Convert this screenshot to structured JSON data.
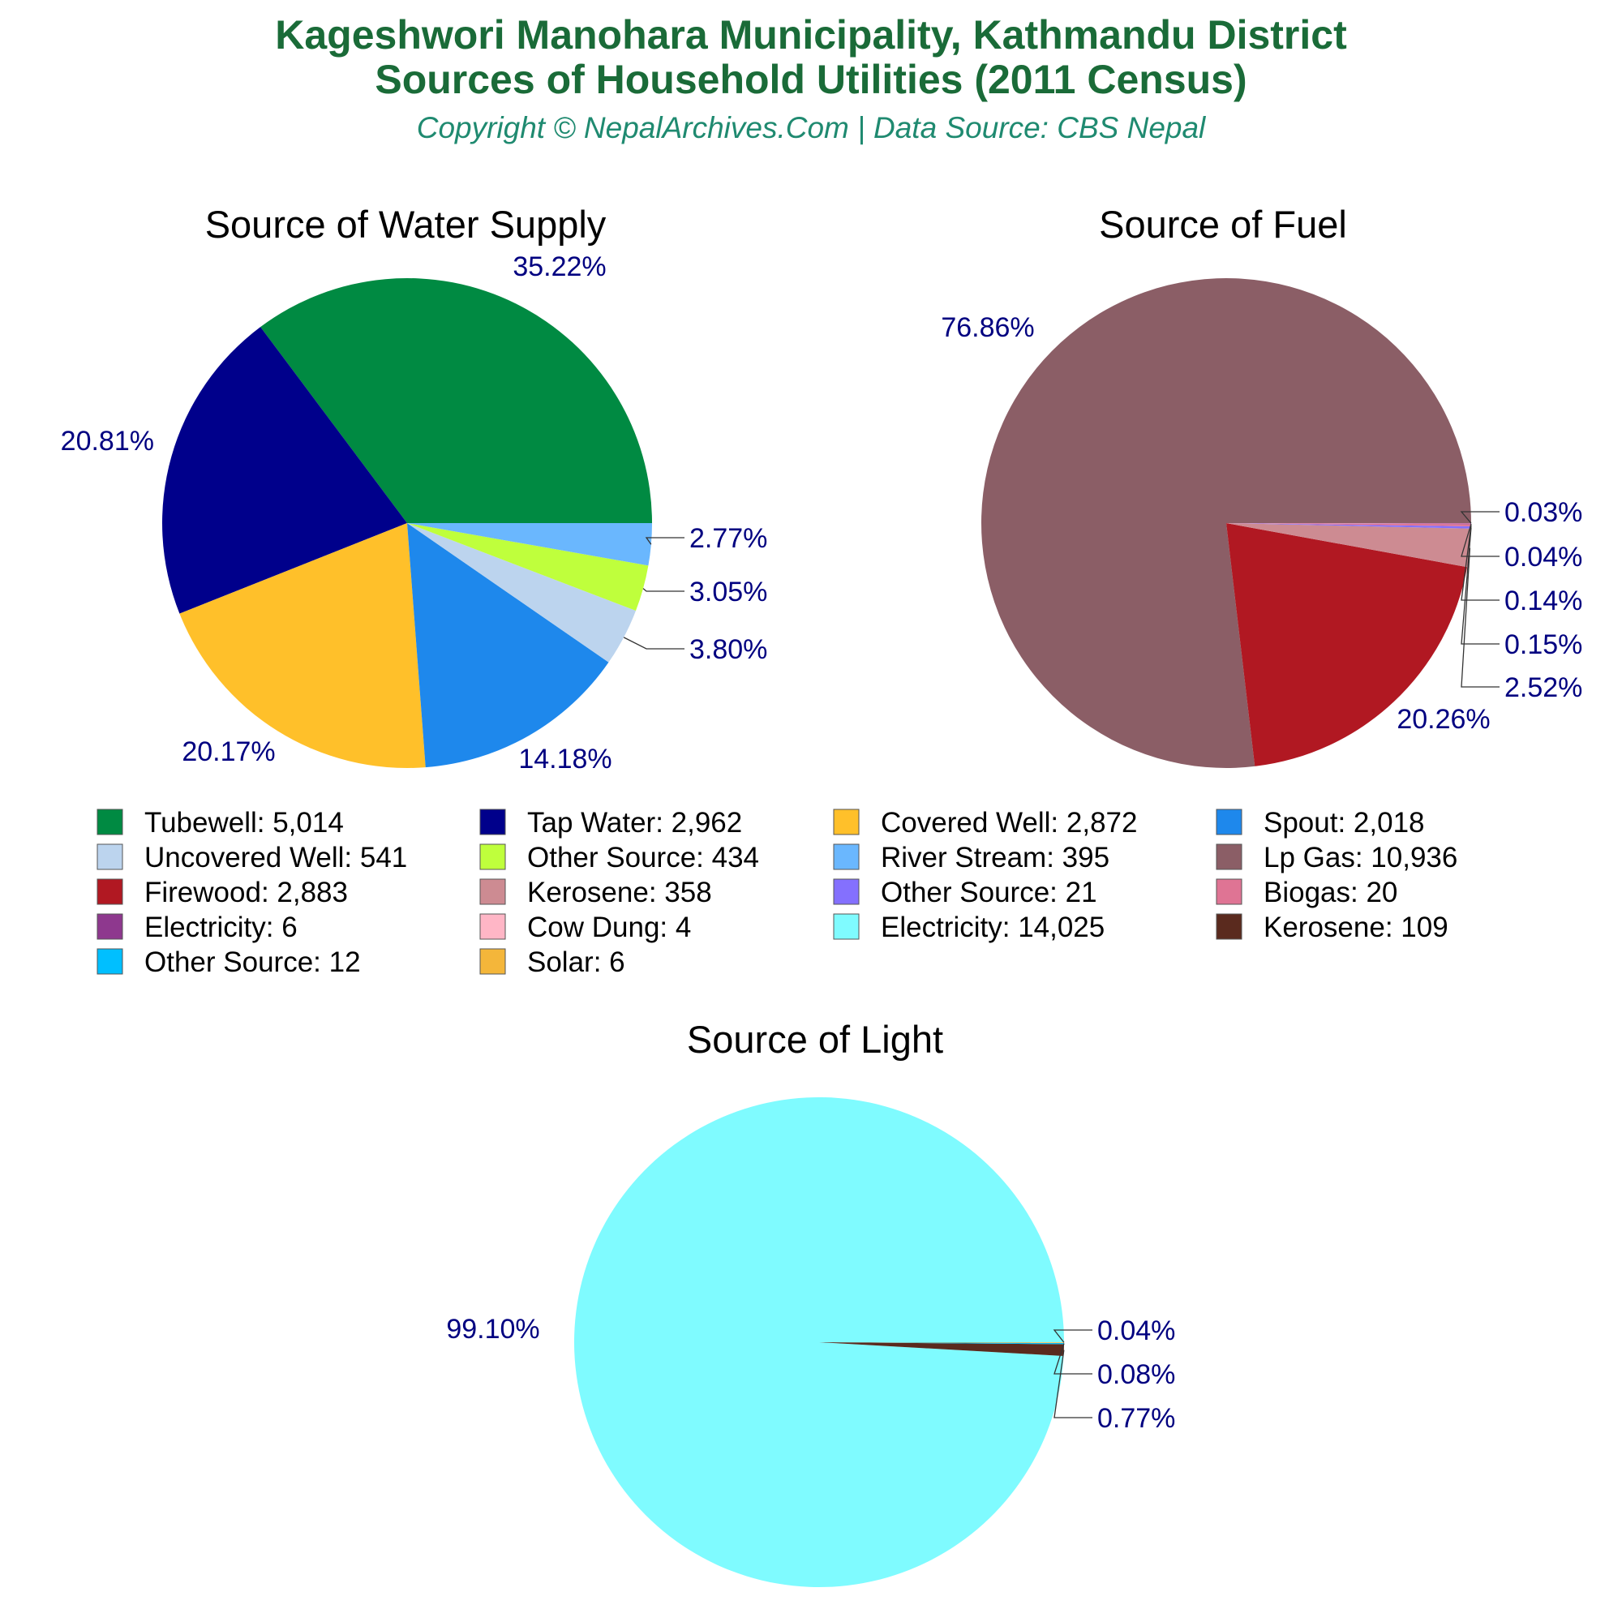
{
  "header": {
    "title_line1": "Kageshwori Manohara Municipality, Kathmandu District",
    "title_line2": "Sources of Household Utilities (2011 Census)",
    "subtitle": "Copyright © NepalArchives.Com | Data Source: CBS Nepal"
  },
  "chart_data": [
    {
      "type": "pie",
      "title": "Source of Water Supply",
      "slices": [
        {
          "label": "Tubewell",
          "value": 5014,
          "display": "5,014",
          "percent": "35.22%",
          "color": "#008a42"
        },
        {
          "label": "Tap Water",
          "value": 2962,
          "display": "2,962",
          "percent": "20.81%",
          "color": "#00008b"
        },
        {
          "label": "Covered Well",
          "value": 2872,
          "display": "2,872",
          "percent": "20.17%",
          "color": "#ffc02a"
        },
        {
          "label": "Spout",
          "value": 2018,
          "display": "2,018",
          "percent": "14.18%",
          "color": "#1e88ec"
        },
        {
          "label": "Uncovered Well",
          "value": 541,
          "display": "541",
          "percent": "3.80%",
          "color": "#bcd4ee"
        },
        {
          "label": "Other Source",
          "value": 434,
          "display": "434",
          "percent": "3.05%",
          "color": "#bfff3c"
        },
        {
          "label": "River Stream",
          "value": 395,
          "display": "395",
          "percent": "2.77%",
          "color": "#6ab7fe"
        }
      ]
    },
    {
      "type": "pie",
      "title": "Source of Fuel",
      "slices": [
        {
          "label": "Lp Gas",
          "value": 10936,
          "display": "10,936",
          "percent": "76.86%",
          "color": "#8b5e66"
        },
        {
          "label": "Firewood",
          "value": 2883,
          "display": "2,883",
          "percent": "20.26%",
          "color": "#b11822"
        },
        {
          "label": "Kerosene",
          "value": 358,
          "display": "358",
          "percent": "2.52%",
          "color": "#cd8b92"
        },
        {
          "label": "Other Source",
          "value": 21,
          "display": "21",
          "percent": "0.15%",
          "color": "#8470fe"
        },
        {
          "label": "Biogas",
          "value": 20,
          "display": "20",
          "percent": "0.14%",
          "color": "#df7494"
        },
        {
          "label": "Electricity",
          "value": 6,
          "display": "6",
          "percent": "0.04%",
          "color": "#8e388e"
        },
        {
          "label": "Cow Dung",
          "value": 4,
          "display": "4",
          "percent": "0.03%",
          "color": "#ffb6c6"
        }
      ]
    },
    {
      "type": "pie",
      "title": "Source of Light",
      "slices": [
        {
          "label": "Electricity",
          "value": 14025,
          "display": "14,025",
          "percent": "99.10%",
          "color": "#7ffbff"
        },
        {
          "label": "Kerosene",
          "value": 109,
          "display": "109",
          "percent": "0.77%",
          "color": "#5a2a1e"
        },
        {
          "label": "Other Source",
          "value": 12,
          "display": "12",
          "percent": "0.08%",
          "color": "#00bfff"
        },
        {
          "label": "Solar",
          "value": 6,
          "display": "6",
          "percent": "0.04%",
          "color": "#f4b63a"
        }
      ]
    }
  ],
  "legend": [
    {
      "label": "Tubewell",
      "display": "5,014",
      "color": "#008a42"
    },
    {
      "label": "Tap Water",
      "display": "2,962",
      "color": "#00008b"
    },
    {
      "label": "Covered Well",
      "display": "2,872",
      "color": "#ffc02a"
    },
    {
      "label": "Spout",
      "display": "2,018",
      "color": "#1e88ec"
    },
    {
      "label": "Uncovered Well",
      "display": "541",
      "color": "#bcd4ee"
    },
    {
      "label": "Other Source",
      "display": "434",
      "color": "#bfff3c"
    },
    {
      "label": "River Stream",
      "display": "395",
      "color": "#6ab7fe"
    },
    {
      "label": "Lp Gas",
      "display": "10,936",
      "color": "#8b5e66"
    },
    {
      "label": "Firewood",
      "display": "2,883",
      "color": "#b11822"
    },
    {
      "label": "Kerosene",
      "display": "358",
      "color": "#cd8b92"
    },
    {
      "label": "Other Source",
      "display": "21",
      "color": "#8470fe"
    },
    {
      "label": "Biogas",
      "display": "20",
      "color": "#df7494"
    },
    {
      "label": "Electricity",
      "display": "6",
      "color": "#8e388e"
    },
    {
      "label": "Cow Dung",
      "display": "4",
      "color": "#ffb6c6"
    },
    {
      "label": "Electricity",
      "display": "14,025",
      "color": "#7ffbff"
    },
    {
      "label": "Kerosene",
      "display": "109",
      "color": "#5a2a1e"
    },
    {
      "label": "Other Source",
      "display": "12",
      "color": "#00bfff"
    },
    {
      "label": "Solar",
      "display": "6",
      "color": "#f4b63a"
    }
  ]
}
